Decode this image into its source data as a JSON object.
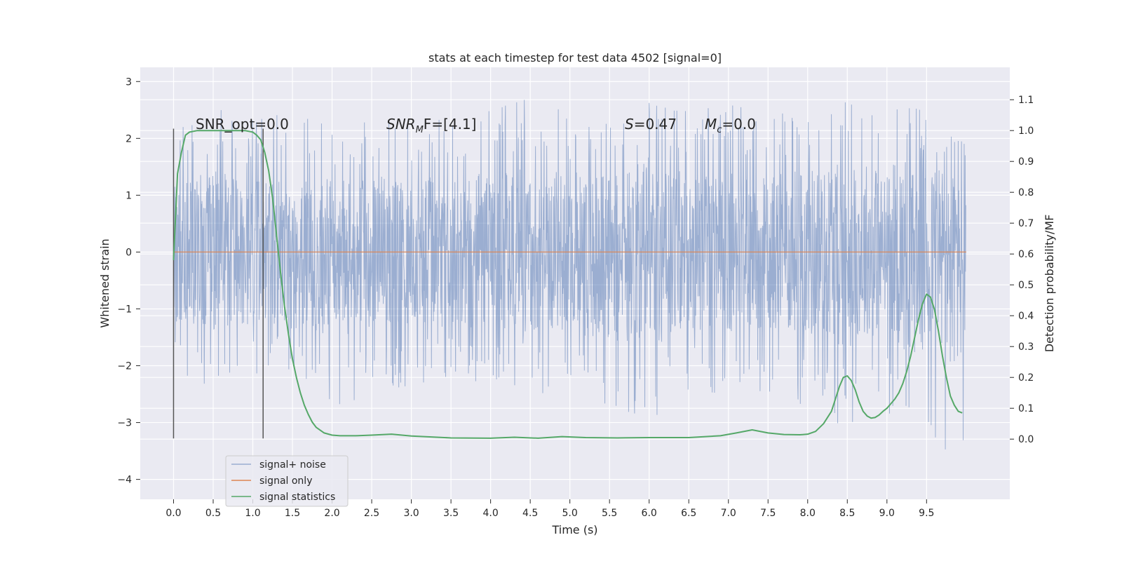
{
  "chart_data": {
    "type": "line",
    "title": "stats at each timestep for test data 4502 [signal=0]",
    "xlabel": "Time (s)",
    "ylabel": "Whitened strain",
    "y2label": "Detection probability/MF",
    "xlim": [
      -0.42,
      10.55
    ],
    "ylim": [
      -4.35,
      3.25
    ],
    "y2lim": [
      -0.195,
      1.205
    ],
    "x_ticks": [
      "0.0",
      "0.5",
      "1.0",
      "1.5",
      "2.0",
      "2.5",
      "3.0",
      "3.5",
      "4.0",
      "4.5",
      "5.0",
      "5.5",
      "6.0",
      "6.5",
      "7.0",
      "7.5",
      "8.0",
      "8.5",
      "9.0",
      "9.5"
    ],
    "y_ticks": [
      "3",
      "2",
      "1",
      "0",
      "−1",
      "−2",
      "−3",
      "−4"
    ],
    "y2_ticks": [
      "1.1",
      "1.0",
      "0.9",
      "0.8",
      "0.7",
      "0.6",
      "0.5",
      "0.4",
      "0.3",
      "0.2",
      "0.1",
      "0.0"
    ],
    "grid": true,
    "legend_placement": "lower-left",
    "annotations": {
      "snr_opt": "SNR_opt=0.0",
      "snr_mf_main": "SNR",
      "snr_mf_sub": "M",
      "snr_mf_rest": "F=[4.1]",
      "s_main": "S",
      "s_rest": "=0.47",
      "mc_main": "M",
      "mc_sub": "c",
      "mc_rest": "=0.0"
    },
    "vertical_markers": {
      "x": [
        0.0,
        1.13
      ],
      "y_range": [
        -3.28,
        2.17
      ]
    },
    "series": [
      {
        "name": "signal+ noise",
        "color": "#4c72b0",
        "opacity": 0.5,
        "axis": "left",
        "x_range": [
          0.0,
          9.995
        ],
        "envelope_x": [
          0.0,
          0.5,
          1.0,
          1.5,
          2.0,
          2.5,
          3.0,
          3.5,
          4.0,
          4.5,
          5.0,
          5.5,
          6.0,
          6.5,
          7.0,
          7.5,
          8.0,
          8.5,
          9.0,
          9.5,
          10.0
        ],
        "envelope_upper": [
          2.2,
          2.55,
          2.35,
          2.5,
          2.35,
          2.35,
          2.45,
          2.4,
          2.55,
          2.75,
          2.5,
          2.6,
          2.85,
          2.5,
          2.6,
          2.45,
          2.65,
          2.7,
          2.55,
          2.75,
          1.7
        ],
        "envelope_lower": [
          -2.2,
          -2.6,
          -2.3,
          -2.2,
          -2.8,
          -2.5,
          -2.35,
          -2.3,
          -2.3,
          -2.5,
          -2.6,
          -2.8,
          -3.05,
          -2.5,
          -2.6,
          -2.5,
          -2.8,
          -3.1,
          -2.85,
          -3.5,
          -4.05
        ]
      },
      {
        "name": "signal only",
        "color": "#dd8452",
        "axis": "left",
        "x": [
          0.0,
          10.0
        ],
        "y": [
          0.0,
          0.0
        ]
      },
      {
        "name": "signal statistics",
        "color": "#55a868",
        "axis": "right",
        "x": [
          0.0,
          0.05,
          0.1,
          0.15,
          0.2,
          0.3,
          0.4,
          0.5,
          0.6,
          0.7,
          0.8,
          0.9,
          1.0,
          1.05,
          1.1,
          1.15,
          1.2,
          1.25,
          1.3,
          1.35,
          1.4,
          1.45,
          1.5,
          1.55,
          1.6,
          1.65,
          1.7,
          1.75,
          1.8,
          1.9,
          2.0,
          2.1,
          2.3,
          2.5,
          2.75,
          3.0,
          3.5,
          4.0,
          4.3,
          4.6,
          4.9,
          5.2,
          5.6,
          6.0,
          6.5,
          6.9,
          7.1,
          7.3,
          7.5,
          7.7,
          7.9,
          8.0,
          8.1,
          8.2,
          8.3,
          8.35,
          8.4,
          8.45,
          8.5,
          8.55,
          8.6,
          8.65,
          8.7,
          8.75,
          8.8,
          8.85,
          8.9,
          8.95,
          9.0,
          9.05,
          9.1,
          9.15,
          9.2,
          9.25,
          9.3,
          9.35,
          9.4,
          9.45,
          9.5,
          9.55,
          9.6,
          9.65,
          9.7,
          9.75,
          9.8,
          9.85,
          9.9,
          9.95
        ],
        "y": [
          0.58,
          0.86,
          0.93,
          0.985,
          0.995,
          1.0,
          1.0,
          1.0,
          1.0,
          1.0,
          1.0,
          1.0,
          0.995,
          0.985,
          0.97,
          0.93,
          0.87,
          0.78,
          0.66,
          0.54,
          0.43,
          0.34,
          0.26,
          0.2,
          0.15,
          0.11,
          0.08,
          0.055,
          0.038,
          0.02,
          0.013,
          0.011,
          0.011,
          0.013,
          0.016,
          0.01,
          0.004,
          0.003,
          0.006,
          0.003,
          0.008,
          0.005,
          0.004,
          0.005,
          0.005,
          0.011,
          0.02,
          0.03,
          0.02,
          0.015,
          0.014,
          0.016,
          0.025,
          0.05,
          0.09,
          0.13,
          0.17,
          0.2,
          0.205,
          0.19,
          0.16,
          0.12,
          0.09,
          0.075,
          0.068,
          0.07,
          0.078,
          0.09,
          0.1,
          0.115,
          0.13,
          0.15,
          0.18,
          0.22,
          0.27,
          0.33,
          0.39,
          0.44,
          0.47,
          0.46,
          0.42,
          0.35,
          0.27,
          0.2,
          0.14,
          0.11,
          0.09,
          0.085
        ]
      }
    ]
  }
}
